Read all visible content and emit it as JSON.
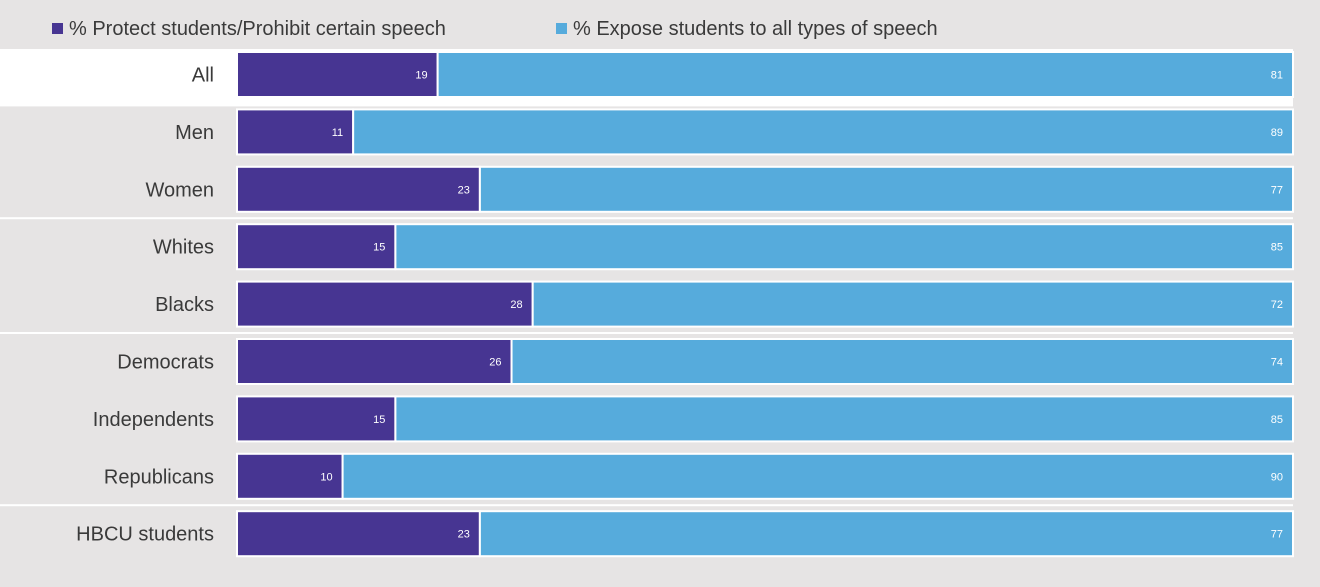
{
  "colors": {
    "background": "#e6e4e4",
    "highlight_row": "#ffffff",
    "divider": "#ffffff",
    "protect": "#473592",
    "expose": "#56abdc"
  },
  "chart_data": {
    "type": "bar",
    "orientation": "horizontal",
    "stacked": true,
    "title": "",
    "xlabel": "",
    "ylabel": "",
    "xlim": [
      0,
      100
    ],
    "legend_position": "top-left",
    "grid": false,
    "categories": [
      "All",
      "Men",
      "Women",
      "Whites",
      "Blacks",
      "Democrats",
      "Independents",
      "Republicans",
      "HBCU students"
    ],
    "groups": [
      [
        "All"
      ],
      [
        "Men",
        "Women"
      ],
      [
        "Whites",
        "Blacks"
      ],
      [
        "Democrats",
        "Independents",
        "Republicans"
      ],
      [
        "HBCU students"
      ]
    ],
    "highlighted_category": "All",
    "series": [
      {
        "name": "% Protect students/Prohibit certain speech",
        "color": "#473592",
        "values": [
          19,
          11,
          23,
          15,
          28,
          26,
          15,
          10,
          23
        ]
      },
      {
        "name": "% Expose students to all types of speech",
        "color": "#56abdc",
        "values": [
          81,
          89,
          77,
          85,
          72,
          74,
          85,
          90,
          77
        ]
      }
    ]
  }
}
